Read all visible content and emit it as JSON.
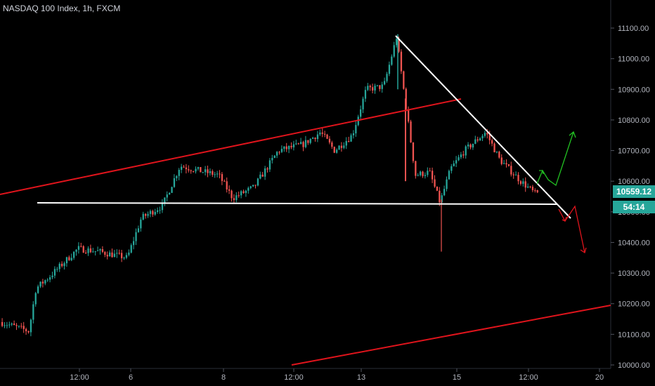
{
  "header": {
    "title": "NASDAQ 100 Index, 1h, FXCM"
  },
  "price_axis": {
    "ticks": [
      "11100.00",
      "11000.00",
      "10900.00",
      "10800.00",
      "10700.00",
      "10600.00",
      "10500.00",
      "10400.00",
      "10300.00",
      "10200.00",
      "10100.00",
      "10000.00"
    ],
    "partial_label": "10"
  },
  "time_axis": {
    "ticks": [
      "12:00",
      "6",
      "8",
      "12:00",
      "13",
      "15",
      "12:00",
      "20"
    ]
  },
  "badges": {
    "last_price": "10559.12",
    "countdown": "54:14"
  },
  "colors": {
    "background": "#000000",
    "up_candle": "#26a69a",
    "down_candle": "#ef5350",
    "trendline_red": "#e0141c",
    "trendline_white": "#ffffff",
    "arrow_green": "#22c122",
    "arrow_red": "#e0141c",
    "badge_bg": "#26a69a",
    "axis_text": "#b2b5be"
  },
  "chart_data": {
    "type": "candlestick",
    "symbol": "NASDAQ 100 Index",
    "interval": "1h",
    "source": "FXCM",
    "ylim": [
      9990,
      11150
    ],
    "y_ticks": [
      10000,
      10100,
      10200,
      10300,
      10400,
      10500,
      10600,
      10700,
      10800,
      10900,
      11000,
      11100
    ],
    "close_path_approx": [
      [
        0,
        10140
      ],
      [
        40,
        10110
      ],
      [
        50,
        10250
      ],
      [
        70,
        10290
      ],
      [
        110,
        10380
      ],
      [
        140,
        10370
      ],
      [
        180,
        10350
      ],
      [
        200,
        10480
      ],
      [
        230,
        10520
      ],
      [
        255,
        10650
      ],
      [
        290,
        10630
      ],
      [
        310,
        10620
      ],
      [
        330,
        10545
      ],
      [
        360,
        10580
      ],
      [
        395,
        10700
      ],
      [
        430,
        10720
      ],
      [
        455,
        10760
      ],
      [
        475,
        10700
      ],
      [
        500,
        10750
      ],
      [
        520,
        10900
      ],
      [
        545,
        10910
      ],
      [
        563,
        11070
      ],
      [
        575,
        10870
      ],
      [
        590,
        10620
      ],
      [
        610,
        10630
      ],
      [
        625,
        10530
      ],
      [
        640,
        10640
      ],
      [
        660,
        10700
      ],
      [
        690,
        10760
      ],
      [
        710,
        10670
      ],
      [
        740,
        10600
      ],
      [
        760,
        10560
      ]
    ],
    "last_price": 10559.12,
    "drawings": {
      "support_horizontal": 10522,
      "descending_trendline_from": 11060,
      "ascending_channel_lines": 2,
      "projected_paths": [
        "bullish breakout (green)",
        "bearish breakdown (red)"
      ]
    },
    "grid": false
  }
}
